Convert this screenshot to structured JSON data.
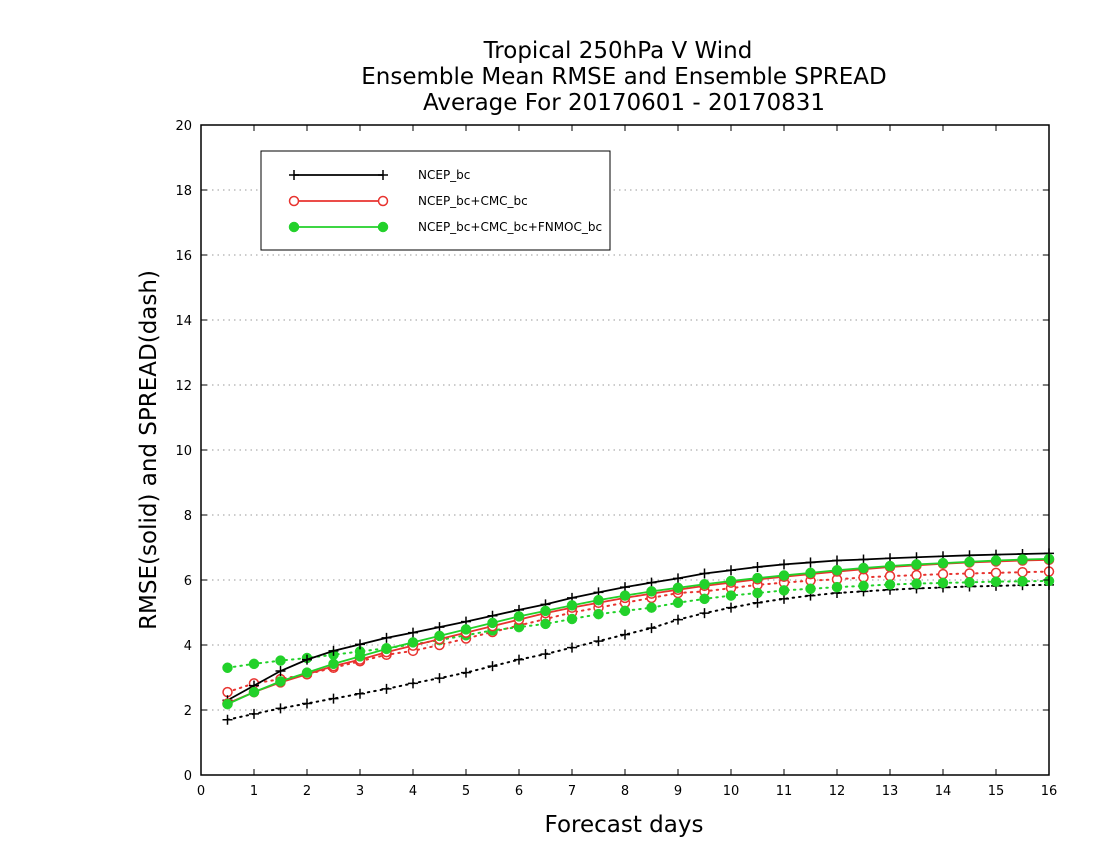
{
  "chart_data": {
    "type": "line",
    "title": [
      "Tropical 250hPa V Wind",
      "Ensemble Mean RMSE and Ensemble SPREAD",
      "Average For 20170601 - 20170831"
    ],
    "xlabel": "Forecast days",
    "ylabel": "RMSE(solid) and SPREAD(dash)",
    "xlim": [
      0,
      16
    ],
    "ylim": [
      0,
      20
    ],
    "xticks": [
      "0",
      "1",
      "2",
      "3",
      "4",
      "5",
      "6",
      "7",
      "8",
      "9",
      "10",
      "11",
      "12",
      "13",
      "14",
      "15",
      "16"
    ],
    "yticks": [
      "0",
      "2",
      "4",
      "6",
      "8",
      "10",
      "12",
      "14",
      "16",
      "18",
      "20"
    ],
    "grid": true,
    "legend_position": "top-left",
    "x": [
      0.5,
      1,
      1.5,
      2,
      2.5,
      3,
      3.5,
      4,
      4.5,
      5,
      5.5,
      6,
      6.5,
      7,
      7.5,
      8,
      8.5,
      9,
      9.5,
      10,
      10.5,
      11,
      11.5,
      12,
      12.5,
      13,
      13.5,
      14,
      14.5,
      15,
      15.5,
      16
    ],
    "series": [
      {
        "name": "NCEP_bc",
        "color": "#000000",
        "marker": "plus",
        "rmse": [
          2.3,
          2.75,
          3.2,
          3.55,
          3.82,
          4.02,
          4.22,
          4.38,
          4.55,
          4.72,
          4.9,
          5.08,
          5.25,
          5.45,
          5.62,
          5.78,
          5.92,
          6.05,
          6.2,
          6.3,
          6.4,
          6.48,
          6.54,
          6.6,
          6.63,
          6.67,
          6.7,
          6.73,
          6.76,
          6.78,
          6.8,
          6.82
        ],
        "spread": [
          1.7,
          1.88,
          2.05,
          2.2,
          2.35,
          2.5,
          2.65,
          2.82,
          2.98,
          3.15,
          3.35,
          3.55,
          3.72,
          3.92,
          4.12,
          4.32,
          4.52,
          4.78,
          4.98,
          5.15,
          5.3,
          5.42,
          5.52,
          5.6,
          5.65,
          5.7,
          5.74,
          5.77,
          5.8,
          5.82,
          5.84,
          5.85
        ]
      },
      {
        "name": "NCEP_bc+CMC_bc",
        "color": "#e8332f",
        "marker": "open-circle",
        "rmse": [
          2.2,
          2.55,
          2.85,
          3.1,
          3.35,
          3.55,
          3.78,
          3.98,
          4.18,
          4.38,
          4.58,
          4.78,
          4.98,
          5.15,
          5.3,
          5.45,
          5.58,
          5.7,
          5.82,
          5.92,
          6.02,
          6.1,
          6.18,
          6.26,
          6.33,
          6.4,
          6.45,
          6.5,
          6.54,
          6.57,
          6.6,
          6.62
        ],
        "spread": [
          2.55,
          2.82,
          2.95,
          3.1,
          3.3,
          3.5,
          3.7,
          3.82,
          4.0,
          4.2,
          4.4,
          4.6,
          4.8,
          5.0,
          5.15,
          5.3,
          5.45,
          5.6,
          5.65,
          5.75,
          5.85,
          5.92,
          5.98,
          6.02,
          6.08,
          6.12,
          6.15,
          6.18,
          6.2,
          6.22,
          6.24,
          6.26
        ]
      },
      {
        "name": "NCEP_bc+CMC_bc+FNMOC_bc",
        "color": "#22d12a",
        "marker": "filled-circle",
        "rmse": [
          2.18,
          2.55,
          2.88,
          3.15,
          3.42,
          3.65,
          3.88,
          4.08,
          4.28,
          4.48,
          4.68,
          4.88,
          5.05,
          5.22,
          5.38,
          5.52,
          5.65,
          5.76,
          5.87,
          5.97,
          6.06,
          6.14,
          6.22,
          6.3,
          6.37,
          6.43,
          6.48,
          6.52,
          6.56,
          6.6,
          6.63,
          6.65
        ],
        "spread": [
          3.3,
          3.42,
          3.52,
          3.6,
          3.7,
          3.8,
          3.9,
          4.02,
          4.15,
          4.3,
          4.45,
          4.55,
          4.65,
          4.8,
          4.95,
          5.05,
          5.15,
          5.3,
          5.42,
          5.52,
          5.6,
          5.68,
          5.73,
          5.78,
          5.82,
          5.86,
          5.89,
          5.91,
          5.93,
          5.95,
          5.96,
          5.97
        ]
      }
    ]
  }
}
